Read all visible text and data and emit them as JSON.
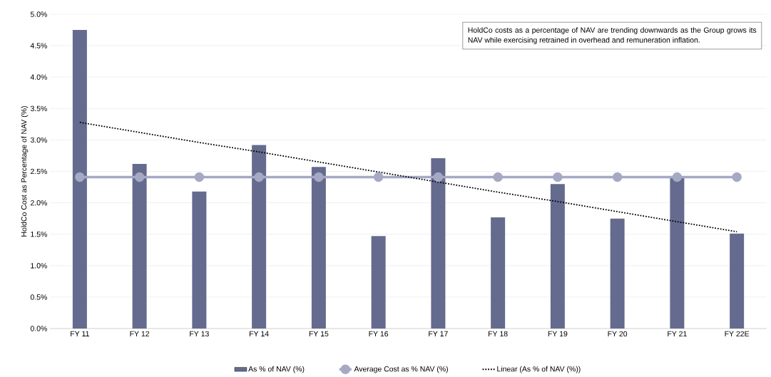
{
  "chart_data": {
    "type": "bar",
    "ylabel": "HoldCo Cost as Percentage of NAV (%)",
    "categories": [
      "FY 11",
      "FY 12",
      "FY 13",
      "FY 14",
      "FY 15",
      "FY 16",
      "FY 17",
      "FY 18",
      "FY 19",
      "FY 20",
      "FY 21",
      "FY 22E"
    ],
    "series": [
      {
        "name": "As % of NAV (%)",
        "color": "#646b8e",
        "values": [
          4.75,
          2.62,
          2.18,
          2.92,
          2.57,
          1.47,
          2.71,
          1.77,
          2.3,
          1.75,
          2.42,
          1.51
        ]
      },
      {
        "name": "Average Cost as % NAV (%)",
        "type": "line",
        "color": "#a6a9c4",
        "marker": "circle",
        "line_style": "solid",
        "values": [
          2.41,
          2.41,
          2.41,
          2.41,
          2.41,
          2.41,
          2.41,
          2.41,
          2.41,
          2.41,
          2.41,
          2.41
        ]
      },
      {
        "name": "Linear (As % of NAV (%))",
        "type": "line",
        "color": "#000000",
        "marker": "none",
        "line_style": "dotted",
        "values": [
          3.28,
          3.12,
          2.96,
          2.81,
          2.65,
          2.49,
          2.33,
          2.17,
          2.02,
          1.86,
          1.7,
          1.54
        ]
      }
    ],
    "ylim": [
      0,
      5
    ],
    "yticks": [
      {
        "value": 0,
        "label": "0.0%"
      },
      {
        "value": 0.5,
        "label": "0.5%"
      },
      {
        "value": 1,
        "label": "1.0%"
      },
      {
        "value": 1.5,
        "label": "1.5%"
      },
      {
        "value": 2,
        "label": "2.0%"
      },
      {
        "value": 2.5,
        "label": "2.5%"
      },
      {
        "value": 3,
        "label": "3.0%"
      },
      {
        "value": 3.5,
        "label": "3.5%"
      },
      {
        "value": 4,
        "label": "4.0%"
      },
      {
        "value": 4.5,
        "label": "4.5%"
      },
      {
        "value": 5,
        "label": "5.0%"
      }
    ],
    "grid": "y",
    "legend": "bottom",
    "annotations": [
      "HoldCo costs as a percentage of NAV are trending downwards as the Group grows its NAV while exercising retrained in overhead and remuneration inflation."
    ]
  }
}
